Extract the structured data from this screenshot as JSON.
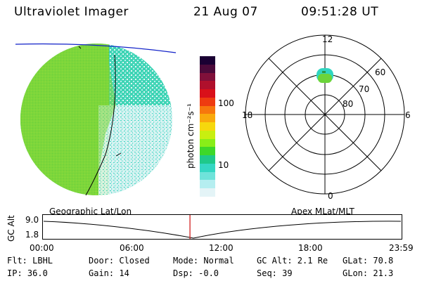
{
  "header": {
    "title": "Ultraviolet Imager",
    "date": "21 Aug 07",
    "time": "09:51:28 UT"
  },
  "colorbar": {
    "unit_label": "photon cm⁻²s⁻¹",
    "ticks": [
      "100",
      "10"
    ],
    "colors": [
      "#1a0033",
      "#4b0a3a",
      "#80103a",
      "#b0102c",
      "#d9101a",
      "#ee3b10",
      "#f7770d",
      "#f9a90c",
      "#f6d80d",
      "#c8ef10",
      "#88ee18",
      "#3dd82a",
      "#1fc98a",
      "#35d7c3",
      "#6fe3da",
      "#b5eef0",
      "#e4f4f7"
    ]
  },
  "polar_plot": {
    "mlt_labels": {
      "top": "12",
      "left": "18",
      "right": "6",
      "bottom": "0"
    },
    "lat_labels": [
      "60",
      "70",
      "80"
    ]
  },
  "timeline": {
    "left_label": "Geographic Lat/Lon",
    "right_label": "Apex MLat/MLT",
    "axis_title": "GC Alt",
    "y_ticks": [
      "9.0",
      "1.8"
    ],
    "x_ticks": [
      "00:00",
      "06:00",
      "12:00",
      "18:00",
      "23:59"
    ],
    "current_time_fraction": 0.41
  },
  "footer": {
    "row1": [
      {
        "key": "Flt: LBHL"
      },
      {
        "key": "Door: Closed"
      },
      {
        "key": "Mode: Normal"
      },
      {
        "key": "GC Alt: 2.1 Re"
      },
      {
        "key": "GLat:  70.8"
      }
    ],
    "row2": [
      {
        "key": "IP: 36.0"
      },
      {
        "key": "Gain: 14"
      },
      {
        "key": "Dsp:   -0.0"
      },
      {
        "key": "Seq: 39"
      },
      {
        "key": "GLon:  21.3"
      }
    ]
  }
}
